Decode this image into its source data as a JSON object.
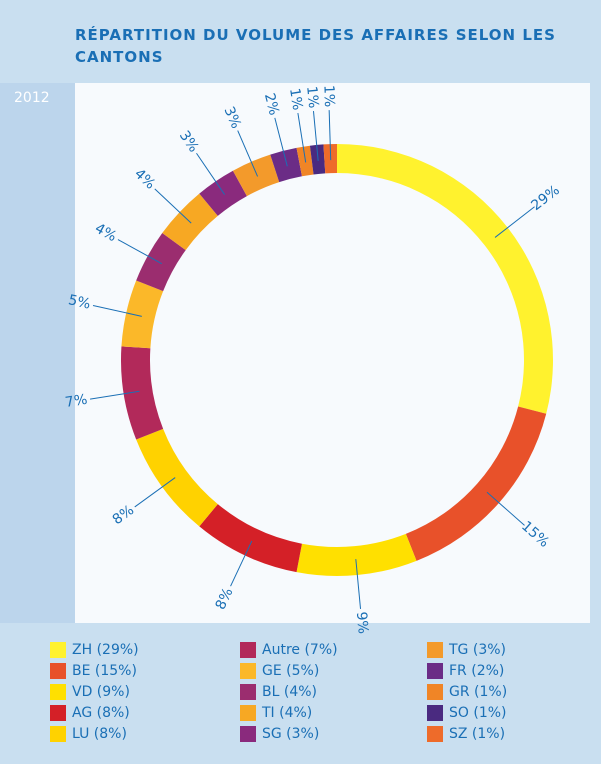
{
  "chart_data": {
    "type": "donut",
    "title": "RÉPARTITION DU VOLUME DES AFFAIRES SELON LES CANTONS",
    "subtitle": "2012",
    "categories": [
      "ZH (29%)",
      "BE (15%)",
      "VD (9%)",
      "AG (8%)",
      "LU (8%)",
      "Autre (7%)",
      "GE (5%)",
      "BL (4%)",
      "TI (4%)",
      "SG (3%)",
      "TG (3%)",
      "FR (2%)",
      "GR (1%)",
      "SO (1%)",
      "SZ (1%)"
    ],
    "values": [
      29,
      15,
      9,
      8,
      8,
      7,
      5,
      4,
      4,
      3,
      3,
      2,
      1,
      1,
      1
    ],
    "value_labels": [
      "29%",
      "15%",
      "9%",
      "8%",
      "8%",
      "7%",
      "5%",
      "4%",
      "4%",
      "3%",
      "3%",
      "2%",
      "1%",
      "1%",
      "1%"
    ],
    "colors": [
      "#fff22e",
      "#e8512a",
      "#ffe000",
      "#d42027",
      "#ffd200",
      "#b2295a",
      "#fbb829",
      "#9b2d6f",
      "#f7a823",
      "#8a2a7d",
      "#f39a2b",
      "#6b2c86",
      "#f08526",
      "#4a2a80",
      "#ee6b2a"
    ]
  }
}
